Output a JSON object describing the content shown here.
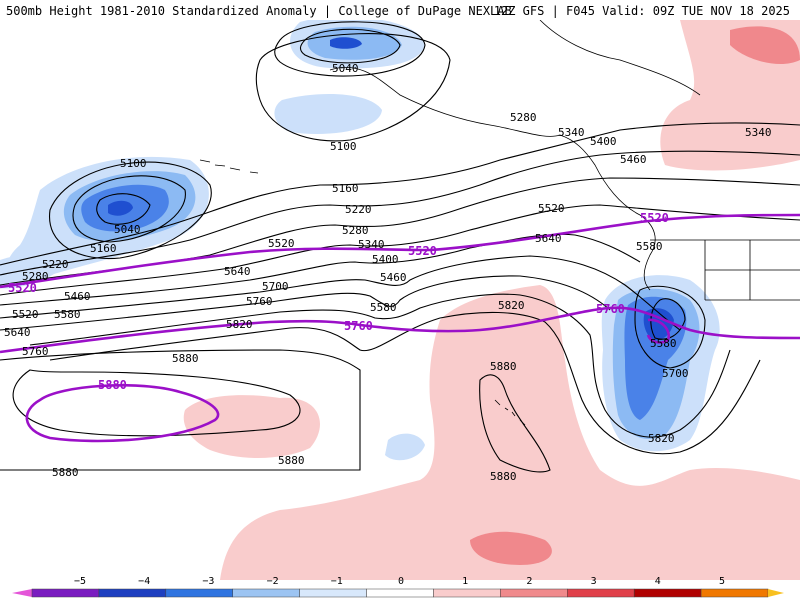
{
  "header": {
    "title_left": "500mb Height 1981-2010 Standardized Anomaly | College of DuPage NEXLAB",
    "title_right": "12Z GFS | F045 Valid: 09Z TUE NOV 18 2025"
  },
  "map": {
    "black_contour_labels": [
      "5040",
      "5100",
      "5100",
      "5160",
      "5040",
      "5160",
      "5220",
      "5280",
      "5220",
      "5280",
      "5340",
      "5400",
      "5460",
      "5280",
      "5340",
      "5400",
      "5460",
      "5520",
      "5640",
      "5580",
      "5520",
      "5460",
      "5520",
      "5580",
      "5640",
      "5700",
      "5760",
      "5820",
      "5580",
      "5640",
      "5760",
      "5820",
      "5880",
      "5880",
      "5880",
      "5880",
      "5580",
      "5700",
      "5820",
      "5340"
    ],
    "purple_contour_labels": [
      "5520",
      "5520",
      "5520",
      "5760",
      "5760",
      "5880"
    ],
    "colors": {
      "purple": "#9b10c8",
      "neg1": "#cce0fa",
      "neg2": "#8cbaf3",
      "neg3": "#4a82e8",
      "neg4": "#1f4fd0",
      "pos1": "#f9cccc",
      "pos2": "#f0888c",
      "land": "#000000"
    }
  },
  "colorbar": {
    "ticks": [
      "−5",
      "−4",
      "−3",
      "−2",
      "−1",
      "0",
      "1",
      "2",
      "3",
      "4",
      "5"
    ],
    "colors": [
      "#e455d8",
      "#7a1cc0",
      "#1d3fc0",
      "#2f74e0",
      "#9cc4f2",
      "#d8e8fb",
      "#ffffff",
      "#f9cccc",
      "#f08a8c",
      "#e0404a",
      "#b00000",
      "#f07800",
      "#f8c020"
    ]
  }
}
